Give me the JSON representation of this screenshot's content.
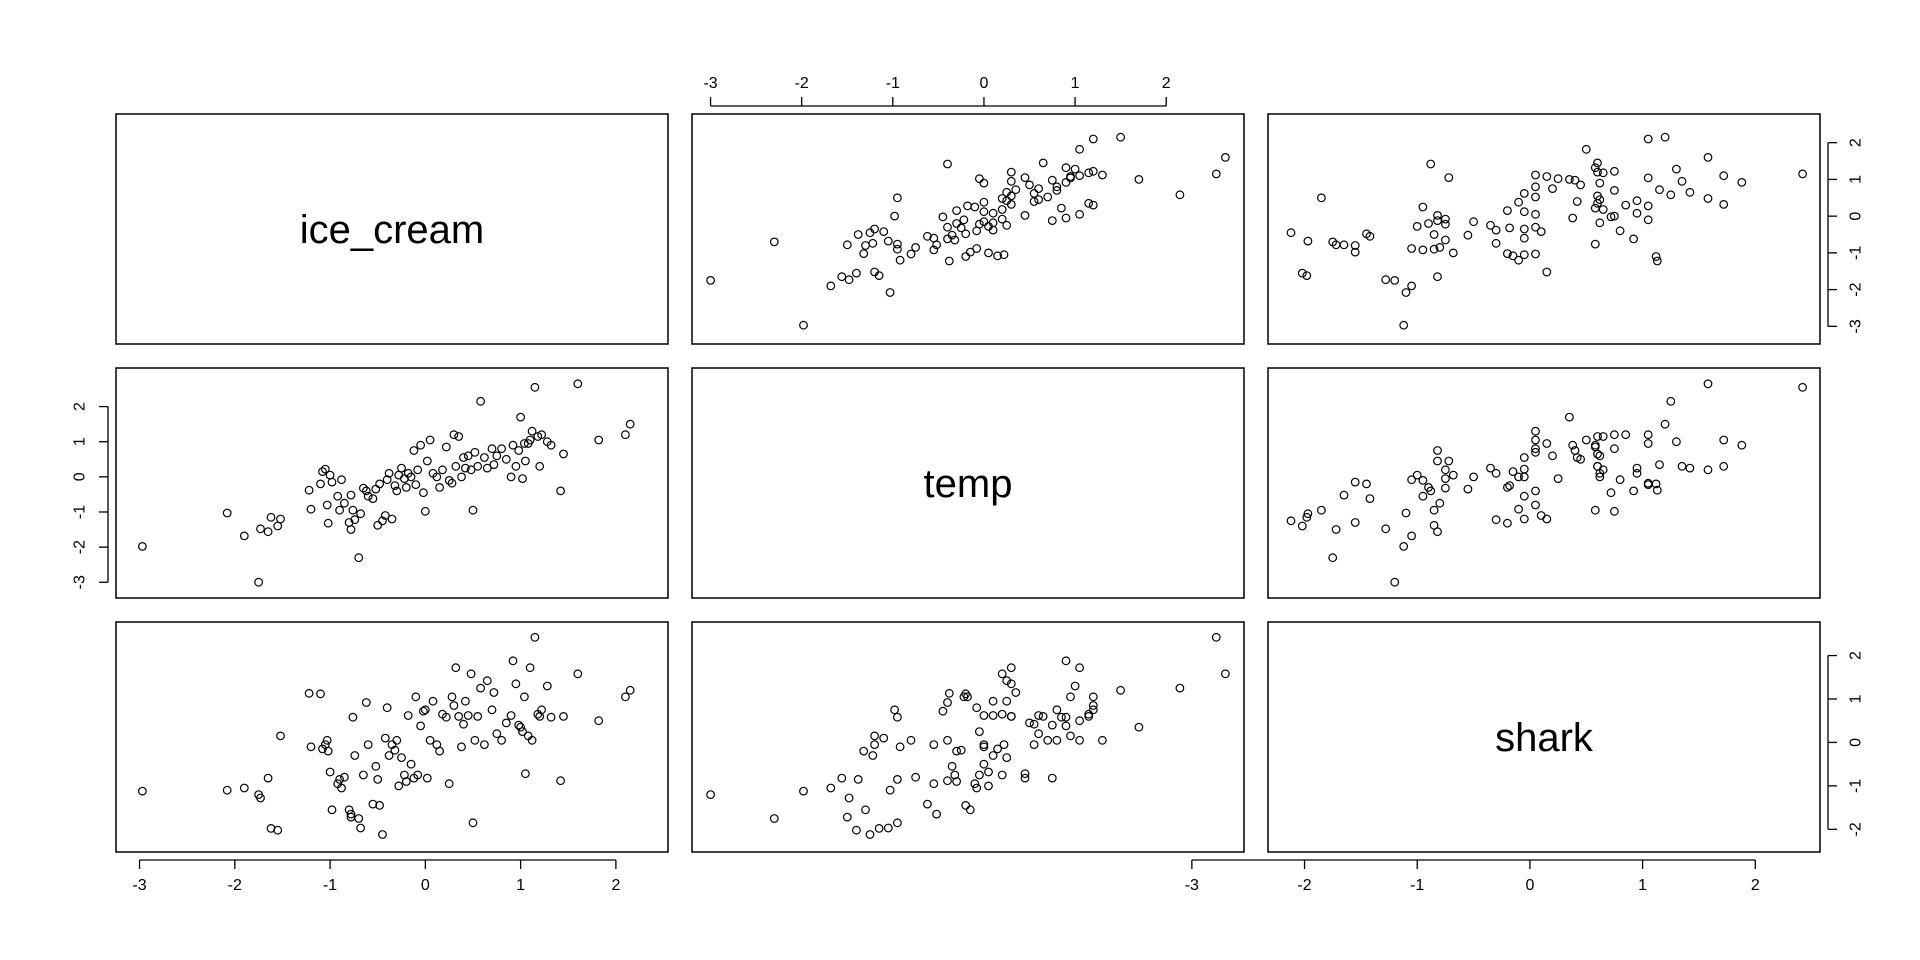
{
  "chart_data": {
    "type": "scatter",
    "layout": "pairs-matrix",
    "variables": [
      "ice_cream",
      "temp",
      "shark"
    ],
    "axes": {
      "ice_cream": {
        "range": [
          -3.1,
          2.4
        ],
        "ticks": [
          -3,
          -2,
          -1,
          0,
          1,
          2
        ]
      },
      "temp": {
        "range": [
          -3.05,
          2.7
        ],
        "ticks": [
          -3,
          -2,
          -1,
          0,
          1,
          2
        ]
      },
      "shark": {
        "range": [
          -2.2,
          2.45
        ],
        "ticks": [
          -2,
          -1,
          0,
          1,
          2
        ]
      }
    },
    "tick_placement": {
      "bottom": [
        "ice_cream",
        null,
        "temp"
      ],
      "top": [
        null,
        "temp",
        null
      ],
      "left": [
        null,
        "temp",
        null
      ],
      "right": [
        "ice_cream",
        null,
        "shark"
      ]
    },
    "observations": [
      {
        "ice_cream": -2.97,
        "temp": -1.98,
        "shark": -1.12
      },
      {
        "ice_cream": -2.08,
        "temp": -1.03,
        "shark": -1.1
      },
      {
        "ice_cream": -1.9,
        "temp": -1.68,
        "shark": -1.05
      },
      {
        "ice_cream": -1.75,
        "temp": -3.0,
        "shark": -1.2
      },
      {
        "ice_cream": -1.73,
        "temp": -1.48,
        "shark": -1.28
      },
      {
        "ice_cream": -1.65,
        "temp": -1.56,
        "shark": -0.82
      },
      {
        "ice_cream": -1.62,
        "temp": -1.15,
        "shark": -1.98
      },
      {
        "ice_cream": -1.55,
        "temp": -1.4,
        "shark": -2.02
      },
      {
        "ice_cream": -1.52,
        "temp": -1.2,
        "shark": 0.15
      },
      {
        "ice_cream": -1.22,
        "temp": -0.38,
        "shark": 1.13
      },
      {
        "ice_cream": -1.2,
        "temp": -0.92,
        "shark": -0.1
      },
      {
        "ice_cream": -1.1,
        "temp": -0.2,
        "shark": 1.12
      },
      {
        "ice_cream": -1.08,
        "temp": 0.15,
        "shark": -0.15
      },
      {
        "ice_cream": -1.05,
        "temp": 0.22,
        "shark": -0.05
      },
      {
        "ice_cream": -1.03,
        "temp": -0.8,
        "shark": 0.05
      },
      {
        "ice_cream": -1.02,
        "temp": -1.32,
        "shark": -0.2
      },
      {
        "ice_cream": -1.0,
        "temp": 0.05,
        "shark": -0.68
      },
      {
        "ice_cream": -0.98,
        "temp": -0.15,
        "shark": -1.55
      },
      {
        "ice_cream": -0.92,
        "temp": -0.55,
        "shark": -0.95
      },
      {
        "ice_cream": -0.9,
        "temp": -0.95,
        "shark": -0.85
      },
      {
        "ice_cream": -0.88,
        "temp": -0.08,
        "shark": -1.05
      },
      {
        "ice_cream": -0.85,
        "temp": -0.75,
        "shark": -0.8
      },
      {
        "ice_cream": -0.8,
        "temp": -1.3,
        "shark": -1.55
      },
      {
        "ice_cream": -0.78,
        "temp": -0.52,
        "shark": -1.65
      },
      {
        "ice_cream": -0.78,
        "temp": -1.5,
        "shark": -1.72
      },
      {
        "ice_cream": -0.76,
        "temp": -0.95,
        "shark": 0.58
      },
      {
        "ice_cream": -0.74,
        "temp": -1.22,
        "shark": -0.3
      },
      {
        "ice_cream": -0.7,
        "temp": -2.3,
        "shark": -1.75
      },
      {
        "ice_cream": -0.68,
        "temp": -1.05,
        "shark": -1.97
      },
      {
        "ice_cream": -0.65,
        "temp": -0.32,
        "shark": -0.75
      },
      {
        "ice_cream": -0.62,
        "temp": -0.4,
        "shark": 0.92
      },
      {
        "ice_cream": -0.6,
        "temp": -0.55,
        "shark": -0.05
      },
      {
        "ice_cream": -0.55,
        "temp": -0.62,
        "shark": -1.42
      },
      {
        "ice_cream": -0.52,
        "temp": -0.35,
        "shark": -0.55
      },
      {
        "ice_cream": -0.5,
        "temp": -1.38,
        "shark": -0.85
      },
      {
        "ice_cream": -0.48,
        "temp": -0.2,
        "shark": -1.45
      },
      {
        "ice_cream": -0.45,
        "temp": -1.25,
        "shark": -2.12
      },
      {
        "ice_cream": -0.42,
        "temp": -1.1,
        "shark": 0.1
      },
      {
        "ice_cream": -0.4,
        "temp": -0.08,
        "shark": 0.8
      },
      {
        "ice_cream": -0.38,
        "temp": 0.1,
        "shark": -0.3
      },
      {
        "ice_cream": -0.35,
        "temp": -1.2,
        "shark": -0.05
      },
      {
        "ice_cream": -0.32,
        "temp": -0.25,
        "shark": -0.18
      },
      {
        "ice_cream": -0.3,
        "temp": -0.4,
        "shark": 0.05
      },
      {
        "ice_cream": -0.28,
        "temp": 0.05,
        "shark": -1.0
      },
      {
        "ice_cream": -0.25,
        "temp": 0.25,
        "shark": -0.35
      },
      {
        "ice_cream": -0.22,
        "temp": -0.05,
        "shark": -0.75
      },
      {
        "ice_cream": -0.2,
        "temp": -0.3,
        "shark": -0.9
      },
      {
        "ice_cream": -0.18,
        "temp": 0.1,
        "shark": 0.62
      },
      {
        "ice_cream": -0.15,
        "temp": 0.0,
        "shark": -0.5
      },
      {
        "ice_cream": -0.12,
        "temp": 0.75,
        "shark": -0.82
      },
      {
        "ice_cream": -0.1,
        "temp": -0.22,
        "shark": 1.05
      },
      {
        "ice_cream": -0.08,
        "temp": 0.2,
        "shark": -0.75
      },
      {
        "ice_cream": -0.05,
        "temp": 0.9,
        "shark": 0.38
      },
      {
        "ice_cream": -0.02,
        "temp": -0.45,
        "shark": 0.72
      },
      {
        "ice_cream": 0.0,
        "temp": -0.98,
        "shark": 0.75
      },
      {
        "ice_cream": 0.02,
        "temp": 0.45,
        "shark": -0.82
      },
      {
        "ice_cream": 0.05,
        "temp": 1.05,
        "shark": 0.05
      },
      {
        "ice_cream": 0.08,
        "temp": 0.1,
        "shark": 0.95
      },
      {
        "ice_cream": 0.12,
        "temp": 0.0,
        "shark": -0.05
      },
      {
        "ice_cream": 0.15,
        "temp": -0.3,
        "shark": -0.2
      },
      {
        "ice_cream": 0.18,
        "temp": 0.2,
        "shark": 0.65
      },
      {
        "ice_cream": 0.22,
        "temp": 0.85,
        "shark": 0.58
      },
      {
        "ice_cream": 0.25,
        "temp": -0.1,
        "shark": -0.95
      },
      {
        "ice_cream": 0.28,
        "temp": -0.18,
        "shark": 1.05
      },
      {
        "ice_cream": 0.3,
        "temp": 1.2,
        "shark": 0.85
      },
      {
        "ice_cream": 0.32,
        "temp": 0.3,
        "shark": 1.72
      },
      {
        "ice_cream": 0.35,
        "temp": 1.15,
        "shark": 0.6
      },
      {
        "ice_cream": 0.38,
        "temp": 0.0,
        "shark": -0.1
      },
      {
        "ice_cream": 0.4,
        "temp": 0.55,
        "shark": 0.42
      },
      {
        "ice_cream": 0.42,
        "temp": 0.25,
        "shark": 0.95
      },
      {
        "ice_cream": 0.45,
        "temp": 0.6,
        "shark": 0.62
      },
      {
        "ice_cream": 0.48,
        "temp": 0.2,
        "shark": 1.58
      },
      {
        "ice_cream": 0.5,
        "temp": -0.95,
        "shark": -1.85
      },
      {
        "ice_cream": 0.52,
        "temp": 0.7,
        "shark": 0.05
      },
      {
        "ice_cream": 0.55,
        "temp": 0.3,
        "shark": 0.6
      },
      {
        "ice_cream": 0.58,
        "temp": 2.15,
        "shark": 1.25
      },
      {
        "ice_cream": 0.62,
        "temp": 0.55,
        "shark": -0.05
      },
      {
        "ice_cream": 0.65,
        "temp": 0.25,
        "shark": 1.42
      },
      {
        "ice_cream": 0.7,
        "temp": 0.8,
        "shark": 0.75
      },
      {
        "ice_cream": 0.72,
        "temp": 0.35,
        "shark": 1.15
      },
      {
        "ice_cream": 0.75,
        "temp": 0.6,
        "shark": 0.2
      },
      {
        "ice_cream": 0.8,
        "temp": 0.8,
        "shark": 0.05
      },
      {
        "ice_cream": 0.85,
        "temp": 0.5,
        "shark": 0.45
      },
      {
        "ice_cream": 0.9,
        "temp": 0.0,
        "shark": 0.62
      },
      {
        "ice_cream": 0.92,
        "temp": 0.9,
        "shark": 1.88
      },
      {
        "ice_cream": 0.95,
        "temp": 0.3,
        "shark": 1.35
      },
      {
        "ice_cream": 0.98,
        "temp": 0.75,
        "shark": 0.4
      },
      {
        "ice_cream": 1.0,
        "temp": 1.7,
        "shark": 0.35
      },
      {
        "ice_cream": 1.02,
        "temp": -0.05,
        "shark": 0.25
      },
      {
        "ice_cream": 1.04,
        "temp": 0.95,
        "shark": 1.05
      },
      {
        "ice_cream": 1.05,
        "temp": 0.45,
        "shark": -0.72
      },
      {
        "ice_cream": 1.08,
        "temp": 0.95,
        "shark": 0.15
      },
      {
        "ice_cream": 1.1,
        "temp": 1.05,
        "shark": 1.72
      },
      {
        "ice_cream": 1.12,
        "temp": 1.3,
        "shark": 0.05
      },
      {
        "ice_cream": 1.15,
        "temp": 2.55,
        "shark": 2.42
      },
      {
        "ice_cream": 1.18,
        "temp": 1.15,
        "shark": 0.65
      },
      {
        "ice_cream": 1.2,
        "temp": 0.3,
        "shark": 0.6
      },
      {
        "ice_cream": 1.22,
        "temp": 1.2,
        "shark": 0.75
      },
      {
        "ice_cream": 1.28,
        "temp": 1.0,
        "shark": 1.3
      },
      {
        "ice_cream": 1.32,
        "temp": 0.9,
        "shark": 0.58
      },
      {
        "ice_cream": 1.42,
        "temp": -0.4,
        "shark": -0.88
      },
      {
        "ice_cream": 1.45,
        "temp": 0.65,
        "shark": 0.6
      },
      {
        "ice_cream": 1.6,
        "temp": 2.65,
        "shark": 1.58
      },
      {
        "ice_cream": 1.82,
        "temp": 1.05,
        "shark": 0.5
      },
      {
        "ice_cream": 2.1,
        "temp": 1.2,
        "shark": 1.05
      },
      {
        "ice_cream": 2.15,
        "temp": 1.5,
        "shark": 1.2
      }
    ]
  }
}
